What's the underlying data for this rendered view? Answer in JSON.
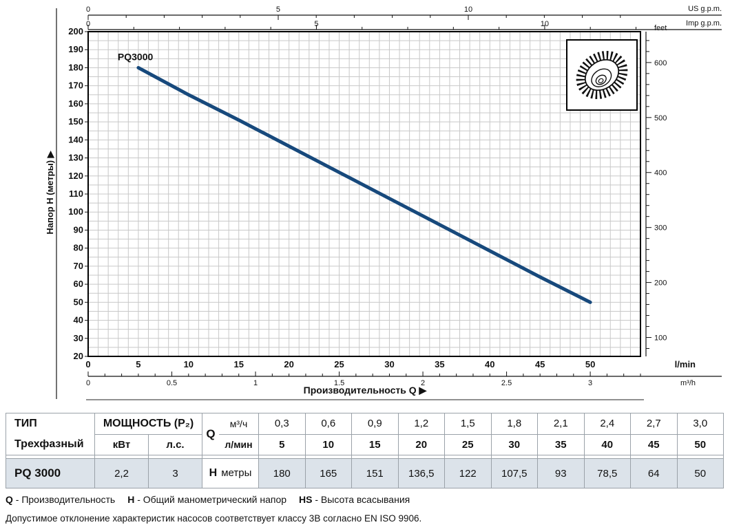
{
  "chart_data": {
    "type": "line",
    "series": [
      {
        "name": "PQ3000",
        "x_lmin": [
          5,
          10,
          15,
          20,
          25,
          30,
          35,
          40,
          45,
          50
        ],
        "y_m": [
          180,
          165,
          151,
          136.5,
          122,
          107.5,
          93,
          78.5,
          64,
          50
        ]
      }
    ],
    "curve_color": "#17497c",
    "grid": true,
    "xlim_lmin": [
      0,
      55
    ],
    "ylim_m": [
      20,
      200
    ],
    "xlabel": "Производительность Q",
    "ylabel": "Напор H (метры)",
    "arrow": "▶",
    "axes": {
      "us_gpm": {
        "title": "US g.p.m.",
        "labeled_ticks": [
          0,
          5,
          10
        ]
      },
      "imp_gpm": {
        "title": "Imp g.p.m.",
        "labeled_ticks": [
          0,
          5,
          10
        ]
      },
      "lmin": {
        "title": "l/min",
        "labeled_ticks": [
          0,
          5,
          10,
          15,
          20,
          25,
          30,
          35,
          40,
          45,
          50
        ]
      },
      "m3h": {
        "title": "m³/h",
        "labeled_ticks": [
          "0",
          "0.5",
          "1",
          "1.5",
          "2",
          "2.5",
          "3"
        ]
      },
      "meters_left": {
        "labeled_ticks": [
          200,
          190,
          180,
          170,
          160,
          150,
          140,
          130,
          120,
          110,
          100,
          90,
          80,
          70,
          60,
          50,
          40,
          30,
          20
        ]
      },
      "feet_right": {
        "title": "feet",
        "labeled_ticks": [
          600,
          500,
          400,
          300,
          200,
          100
        ]
      }
    }
  },
  "table": {
    "col_type_header": "ТИП",
    "col_type_sub": "Трехфазный",
    "power_header": "МОЩНОСТЬ (P₂)",
    "power_units": [
      "кВт",
      "л.с."
    ],
    "q_letter": "Q",
    "q_unit_m3h": "м³/ч",
    "q_unit_lmin": "л/мин",
    "m3h_values": [
      "0,3",
      "0,6",
      "0,9",
      "1,2",
      "1,5",
      "1,8",
      "2,1",
      "2,4",
      "2,7",
      "3,0"
    ],
    "lmin_values": [
      "5",
      "10",
      "15",
      "20",
      "25",
      "30",
      "35",
      "40",
      "45",
      "50"
    ],
    "model": "PQ 3000",
    "kw": "2,2",
    "hp": "3",
    "h_letter": "H",
    "h_unit": "метры",
    "h_values": [
      "180",
      "165",
      "151",
      "136,5",
      "122",
      "107,5",
      "93",
      "78,5",
      "64",
      "50"
    ]
  },
  "footer": {
    "legend": [
      {
        "term": "Q",
        "desc": "- Производительность"
      },
      {
        "term": "H",
        "desc": "- Общий манометрический напор"
      },
      {
        "term": "HS",
        "desc": "- Высота всасывания"
      }
    ],
    "note": "Допустимое отклонение характеристик насосов соответствует классу 3B согласно EN ISO 9906."
  }
}
